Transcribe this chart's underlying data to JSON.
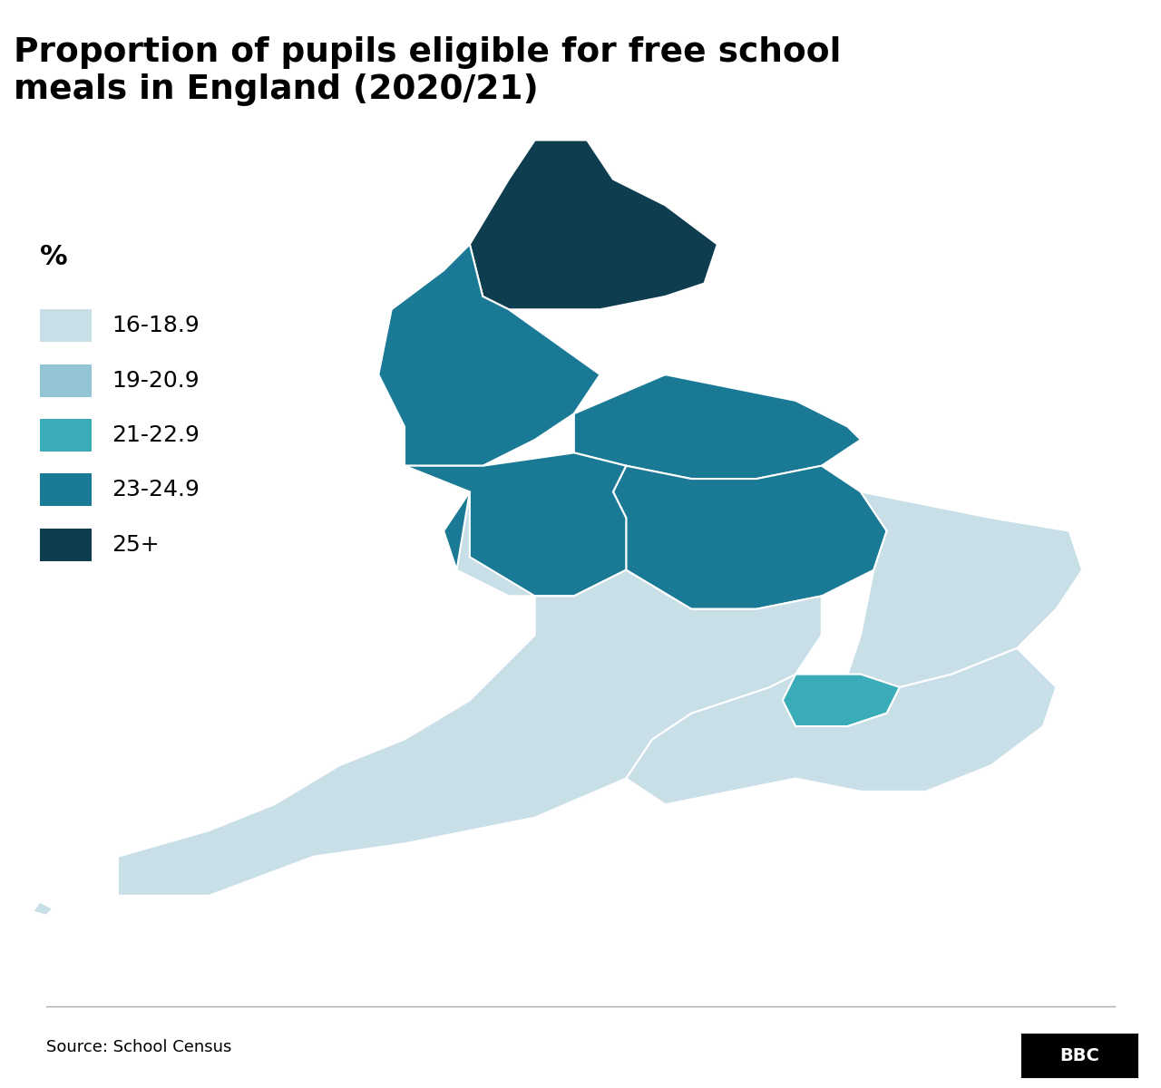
{
  "title": "Proportion of pupils eligible for free school\nmeals in England (2020/21)",
  "title_fontsize": 32,
  "source_text": "Source: School Census",
  "legend_title": "%",
  "legend_items": [
    {
      "label": "16-18.9",
      "color": "#c8dfe8"
    },
    {
      "label": "19-20.9",
      "color": "#93c4d4"
    },
    {
      "label": "21-22.9",
      "color": "#3aacb8"
    },
    {
      "label": "23-24.9",
      "color": "#1a7a96"
    },
    {
      "label": "25+",
      "color": "#0d3d4f"
    }
  ],
  "region_colors": {
    "North East": "#0d3d4f",
    "North West": "#1a7a96",
    "Yorkshire and The Humber": "#1a7a96",
    "East Midlands": "#1a7a96",
    "West Midlands": "#1a7a96",
    "East of England": "#c8dfe8",
    "London": "#3aacb8",
    "South East": "#c8dfe8",
    "South West": "#c8dfe8"
  },
  "background_color": "#ffffff",
  "border_color": "#ffffff",
  "map_edge_color": "#ffffff"
}
